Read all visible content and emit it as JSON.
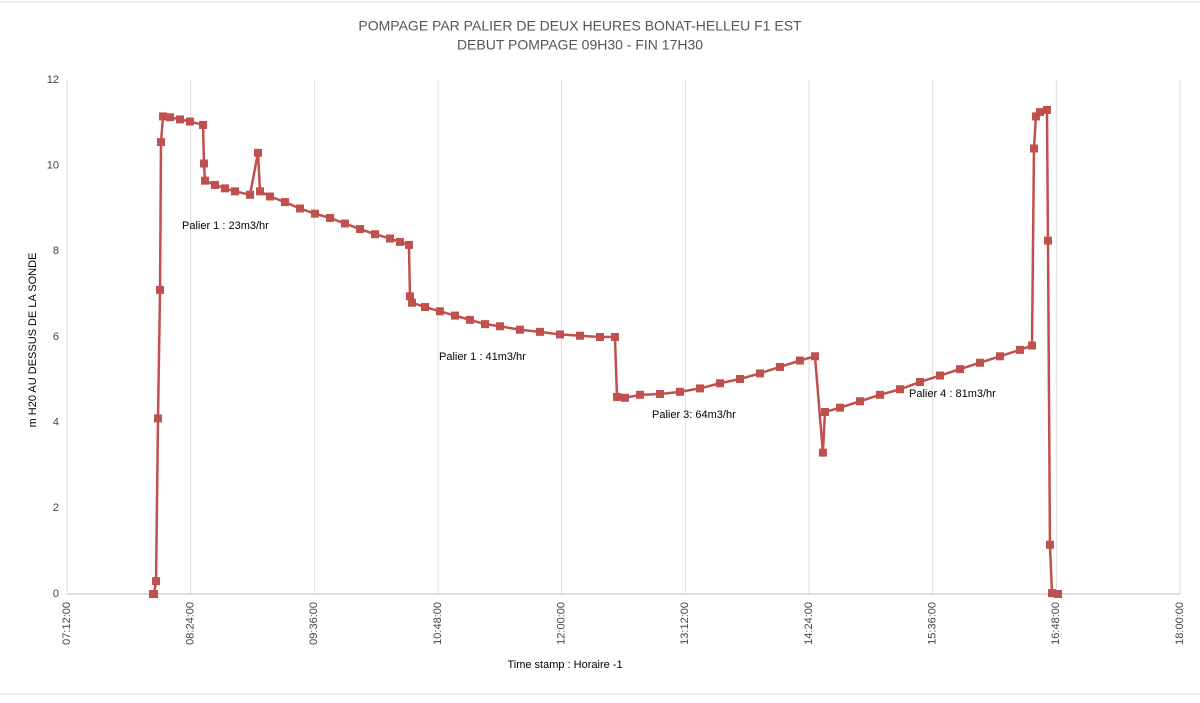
{
  "chart_data": {
    "type": "line",
    "title": [
      "POMPAGE PAR PALIER DE DEUX HEURES BONAT-HELLEU F1 EST",
      "DEBUT POMPAGE 09H30 - FIN 17H30"
    ],
    "x_label": "Time stamp :  Horaire -1",
    "y_label": "m H20 AU DESSUS DE LA SONDE",
    "xlim": [
      7.2,
      18
    ],
    "ylim": [
      0,
      12
    ],
    "xticks": [
      {
        "value": 7.2,
        "label": "07:12:00"
      },
      {
        "value": 8.4,
        "label": "08:24:00"
      },
      {
        "value": 9.6,
        "label": "09:36:00"
      },
      {
        "value": 10.8,
        "label": "10:48:00"
      },
      {
        "value": 12,
        "label": "12:00:00"
      },
      {
        "value": 13.2,
        "label": "13:12:00"
      },
      {
        "value": 14.4,
        "label": "14:24:00"
      },
      {
        "value": 15.6,
        "label": "15:36:00"
      },
      {
        "value": 16.8,
        "label": "16:48:00"
      },
      {
        "value": 18,
        "label": "18:00:00"
      }
    ],
    "yticks": [
      0,
      2,
      4,
      6,
      8,
      10,
      12
    ],
    "grid": "x",
    "annotations": [
      "Palier 1 : 23m3/hr",
      "Palier 1 : 41m3/hr",
      "Palier 3: 64m3/hr",
      "Palier 4 : 81m3/hr"
    ],
    "series": [
      {
        "color": "#c0504d",
        "x": [
          8.034,
          8.044,
          8.064,
          8.083,
          8.103,
          8.112,
          8.132,
          8.199,
          8.296,
          8.393,
          8.52,
          8.529,
          8.539,
          8.636,
          8.733,
          8.83,
          8.976,
          9.053,
          9.073,
          9.17,
          9.315,
          9.461,
          9.606,
          9.752,
          9.897,
          10.043,
          10.189,
          10.334,
          10.431,
          10.518,
          10.528,
          10.548,
          10.674,
          10.819,
          10.965,
          11.11,
          11.256,
          11.401,
          11.595,
          11.79,
          11.984,
          12.178,
          12.372,
          12.517,
          12.537,
          12.614,
          12.76,
          12.954,
          13.148,
          13.342,
          13.536,
          13.73,
          13.924,
          14.118,
          14.312,
          14.458,
          14.535,
          14.555,
          14.701,
          14.895,
          15.089,
          15.283,
          15.477,
          15.671,
          15.865,
          16.059,
          16.253,
          16.447,
          16.564,
          16.583,
          16.602,
          16.641,
          16.709,
          16.719,
          16.738,
          16.758,
          16.816
        ],
        "values": [
          0,
          0,
          0.3,
          4.1,
          7.1,
          10.55,
          11.15,
          11.13,
          11.08,
          11.03,
          10.95,
          10.05,
          9.65,
          9.55,
          9.47,
          9.4,
          9.32,
          10.3,
          9.4,
          9.28,
          9.15,
          9.0,
          8.88,
          8.78,
          8.65,
          8.52,
          8.4,
          8.3,
          8.22,
          8.15,
          6.95,
          6.8,
          6.7,
          6.6,
          6.5,
          6.4,
          6.3,
          6.25,
          6.17,
          6.12,
          6.06,
          6.03,
          6.0,
          6.0,
          4.6,
          4.58,
          4.65,
          4.67,
          4.72,
          4.8,
          4.92,
          5.02,
          5.15,
          5.3,
          5.45,
          5.55,
          3.3,
          4.25,
          4.35,
          4.5,
          4.65,
          4.78,
          4.95,
          5.1,
          5.25,
          5.4,
          5.55,
          5.7,
          5.8,
          10.4,
          11.15,
          11.25,
          11.3,
          8.25,
          1.15,
          0.02,
          0
        ]
      }
    ]
  }
}
